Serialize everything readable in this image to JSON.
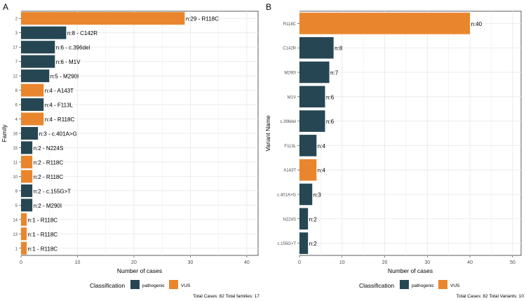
{
  "colors": {
    "pathogenic": "#264653",
    "VUS": "#e9862d",
    "grid": "#ebebeb",
    "axis": "#333333"
  },
  "chart_data": [
    {
      "type": "bar",
      "orientation": "horizontal",
      "panel_label": "A",
      "xlabel": "Number of cases",
      "ylabel": "Family",
      "xlim": [
        0,
        42
      ],
      "xticks": [
        0,
        10,
        20,
        30,
        40
      ],
      "grid": true,
      "legend_title": "Classification",
      "legend_position": "bottom",
      "legend": [
        {
          "name": "pathogenic",
          "color": "#264653"
        },
        {
          "name": "VUS",
          "color": "#e9862d"
        }
      ],
      "footnote": "Total Cases: 82   Total families: 17",
      "categories": [
        "2",
        "3",
        "17",
        "7",
        "12",
        "8",
        "6",
        "4",
        "16",
        "15",
        "11",
        "10",
        "9",
        "5",
        "14",
        "13",
        "1"
      ],
      "values": [
        29,
        8,
        6,
        6,
        5,
        4,
        4,
        4,
        3,
        2,
        2,
        2,
        2,
        2,
        1,
        1,
        1
      ],
      "classification": [
        "VUS",
        "pathogenic",
        "pathogenic",
        "pathogenic",
        "pathogenic",
        "VUS",
        "pathogenic",
        "VUS",
        "pathogenic",
        "pathogenic",
        "VUS",
        "VUS",
        "pathogenic",
        "pathogenic",
        "VUS",
        "VUS",
        "VUS"
      ],
      "data_labels": [
        "n:29 - R118C",
        "n:8 - C142R",
        "n:6 - c.396del",
        "n:6 - M1V",
        "n:5 - M290I",
        "n:4 - A143T",
        "n:4 - F113L",
        "n:4 - R118C",
        "n:3 - c.401A>G",
        "n:2 - N224S",
        "n:2 - R118C",
        "n:2 - R118C",
        "n:2 - c.155G>T",
        "n:2 - M290I",
        "n:1 - R118C",
        "n:1 - R118C",
        "n:1 - R118C"
      ]
    },
    {
      "type": "bar",
      "orientation": "horizontal",
      "panel_label": "B",
      "xlabel": "Number of cases",
      "ylabel": "Variant Name",
      "xlim": [
        0,
        52
      ],
      "xticks": [
        0,
        10,
        20,
        30,
        40,
        50
      ],
      "grid": true,
      "legend_title": "Classification",
      "legend_position": "bottom",
      "legend": [
        {
          "name": "pathogenic",
          "color": "#264653"
        },
        {
          "name": "VUS",
          "color": "#e9862d"
        }
      ],
      "footnote": "Total Cases: 82   Total Variants: 10",
      "categories": [
        "R118C",
        "C142R",
        "M290I",
        "M1V",
        "c.396del",
        "F113L",
        "A143T",
        "c.401A>G",
        "N224S",
        "c.155G>T"
      ],
      "values": [
        40,
        8,
        7,
        6,
        6,
        4,
        4,
        3,
        2,
        2
      ],
      "classification": [
        "VUS",
        "pathogenic",
        "pathogenic",
        "pathogenic",
        "pathogenic",
        "pathogenic",
        "VUS",
        "pathogenic",
        "pathogenic",
        "pathogenic"
      ],
      "data_labels": [
        "n:40",
        "n:8",
        "n:7",
        "n:6",
        "n:6",
        "n:4",
        "n:4",
        "n:3",
        "n:2",
        "n:2"
      ]
    }
  ]
}
